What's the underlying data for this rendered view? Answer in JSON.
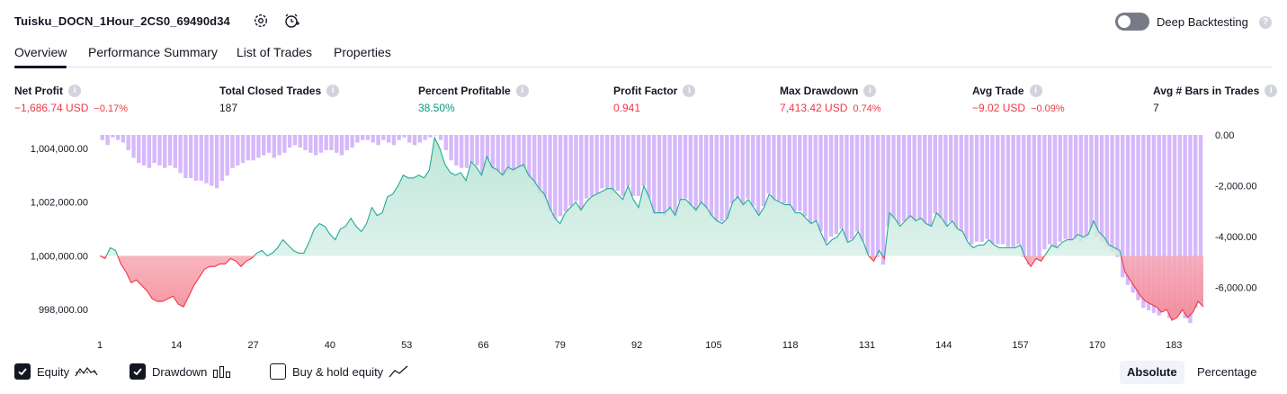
{
  "header": {
    "title": "Tuisku_DOCN_1Hour_2CS0_69490d34",
    "deep_backtesting_label": "Deep Backtesting",
    "deep_backtesting_on": false
  },
  "tabs": [
    {
      "label": "Overview",
      "active": true
    },
    {
      "label": "Performance Summary",
      "active": false
    },
    {
      "label": "List of Trades",
      "active": false
    },
    {
      "label": "Properties",
      "active": false
    }
  ],
  "metrics": [
    {
      "label": "Net Profit",
      "value": "−1,686.74 USD",
      "pct": "−0.17%",
      "tone": "neg"
    },
    {
      "label": "Total Closed Trades",
      "value": "187",
      "pct": "",
      "tone": "neu"
    },
    {
      "label": "Percent Profitable",
      "value": "38.50%",
      "pct": "",
      "tone": "pos"
    },
    {
      "label": "Profit Factor",
      "value": "0.941",
      "pct": "",
      "tone": "neg"
    },
    {
      "label": "Max Drawdown",
      "value": "7,413.42 USD",
      "pct": "0.74%",
      "tone": "neg"
    },
    {
      "label": "Avg Trade",
      "value": "−9.02 USD",
      "pct": "−0.09%",
      "tone": "neg"
    },
    {
      "label": "Avg # Bars in Trades",
      "value": "7",
      "pct": "",
      "tone": "neu"
    }
  ],
  "chart_data": {
    "type": "line",
    "left_axis": {
      "ticks": [
        "1,004,000.00",
        "1,002,000.00",
        "1,000,000.00",
        "998,000.00"
      ],
      "values": [
        1004000,
        1002000,
        1000000,
        998000
      ],
      "range": [
        997400,
        1004500
      ]
    },
    "right_axis": {
      "ticks": [
        "0.00",
        "-2,000.00",
        "-4,000.00",
        "-6,000.00"
      ],
      "values": [
        0,
        -2000,
        -4000,
        -6000
      ],
      "range": [
        -7500,
        0
      ]
    },
    "x_ticks": [
      "1",
      "14",
      "27",
      "40",
      "53",
      "66",
      "79",
      "92",
      "105",
      "118",
      "131",
      "144",
      "157",
      "170",
      "183"
    ],
    "x_range": [
      1,
      188
    ],
    "baseline": 1000000,
    "series": [
      {
        "name": "Equity",
        "values": [
          1000000,
          999900,
          1000300,
          1000200,
          999700,
          999400,
          999000,
          999100,
          998900,
          998700,
          998400,
          998300,
          998300,
          998400,
          998500,
          998200,
          998100,
          998500,
          998900,
          999200,
          999500,
          999600,
          999600,
          999700,
          999700,
          999900,
          999800,
          999600,
          999800,
          999900,
          1000100,
          1000200,
          1000000,
          1000100,
          1000300,
          1000600,
          1000400,
          1000200,
          1000100,
          1000100,
          1000500,
          1001000,
          1001200,
          1001100,
          1000800,
          1000600,
          1001000,
          1001100,
          1001400,
          1001100,
          1000900,
          1001200,
          1001800,
          1001500,
          1001600,
          1002200,
          1002300,
          1002600,
          1003000,
          1002900,
          1002900,
          1003000,
          1002900,
          1003200,
          1004400,
          1004000,
          1003400,
          1003100,
          1003000,
          1003100,
          1002800,
          1003500,
          1003300,
          1003000,
          1003700,
          1003300,
          1003200,
          1003000,
          1003300,
          1003200,
          1003300,
          1003400,
          1003000,
          1002800,
          1002500,
          1002300,
          1001800,
          1001400,
          1001200,
          1001600,
          1001800,
          1002000,
          1001700,
          1002000,
          1002200,
          1002300,
          1002400,
          1002500,
          1002500,
          1002300,
          1002100,
          1002600,
          1002100,
          1001800,
          1002600,
          1002200,
          1001600,
          1001600,
          1001600,
          1001800,
          1001500,
          1002100,
          1002100,
          1001900,
          1001700,
          1002000,
          1001800,
          1001500,
          1001300,
          1001200,
          1001400,
          1002000,
          1002200,
          1001900,
          1002100,
          1001800,
          1001500,
          1001800,
          1002300,
          1002100,
          1002000,
          1001900,
          1001900,
          1001600,
          1001600,
          1001400,
          1001200,
          1001300,
          1000800,
          1000400,
          1000600,
          1000700,
          1001000,
          1000500,
          1000600,
          1000900,
          1000500,
          1000000,
          999800,
          1000200,
          999900,
          1001600,
          1001400,
          1001100,
          1001300,
          1001500,
          1001300,
          1001400,
          1001200,
          1001100,
          1001600,
          1001400,
          1001100,
          1001300,
          1001000,
          1000900,
          1000500,
          1000300,
          1000400,
          1000400,
          1000600,
          1000400,
          1000300,
          1000300,
          1000300,
          1000300,
          1000400,
          999900,
          999600,
          999900,
          999800,
          1000100,
          1000400,
          1000300,
          1000500,
          1000600,
          1000600,
          1000800,
          1000700,
          1000800,
          1001300,
          1000900,
          1000700,
          1000400,
          1000300,
          1000200,
          999400,
          999100,
          998800,
          998500,
          998300,
          998200,
          998100,
          997900,
          998000,
          997600,
          997700,
          998000,
          997700,
          997900,
          998300,
          998100
        ]
      }
    ],
    "drawdown_bars": [
      -200,
      -400,
      -100,
      -200,
      -300,
      -600,
      -900,
      -1100,
      -1200,
      -1300,
      -1100,
      -1200,
      -1300,
      -1200,
      -1300,
      -1500,
      -1700,
      -1700,
      -1800,
      -1800,
      -1900,
      -2000,
      -2100,
      -1800,
      -1600,
      -1300,
      -1200,
      -1100,
      -1000,
      -1000,
      -900,
      -800,
      -700,
      -900,
      -800,
      -700,
      -500,
      -400,
      -500,
      -600,
      -700,
      -800,
      -700,
      -600,
      -600,
      -700,
      -800,
      -600,
      -500,
      -300,
      -200,
      -200,
      -300,
      -400,
      -200,
      -300,
      -400,
      -200,
      -100,
      -300,
      -400,
      -300,
      -200,
      -100,
      0,
      -200,
      -600,
      -1000,
      -1200,
      -1300,
      -1300,
      -1100,
      -1200,
      -1500,
      -1000,
      -1400,
      -1500,
      -1600,
      -1400,
      -1500,
      -1300,
      -1300,
      -1700,
      -2000,
      -2300,
      -2500,
      -3000,
      -3300,
      -3200,
      -3000,
      -2800,
      -2600,
      -2900,
      -2500,
      -2400,
      -2300,
      -2100,
      -2100,
      -2300,
      -2200,
      -2400,
      -2000,
      -2400,
      -2400,
      -2000,
      -2500,
      -3100,
      -3100,
      -3200,
      -3000,
      -3100,
      -2600,
      -2500,
      -2800,
      -3000,
      -2800,
      -2900,
      -3200,
      -3400,
      -3400,
      -3300,
      -2700,
      -2500,
      -2700,
      -2500,
      -2800,
      -3100,
      -2800,
      -2300,
      -2600,
      -2600,
      -2700,
      -2800,
      -3000,
      -3000,
      -3200,
      -3500,
      -3400,
      -3800,
      -4200,
      -4000,
      -3900,
      -3700,
      -4200,
      -4100,
      -3800,
      -4200,
      -4700,
      -4900,
      -4800,
      -5100,
      -3600,
      -3300,
      -3500,
      -3400,
      -3300,
      -3400,
      -3300,
      -3500,
      -3600,
      -3100,
      -3300,
      -3600,
      -3400,
      -3700,
      -3800,
      -4100,
      -4300,
      -4200,
      -4200,
      -4100,
      -4300,
      -4300,
      -4300,
      -4400,
      -4400,
      -4300,
      -4800,
      -5100,
      -4800,
      -4900,
      -4500,
      -4300,
      -4400,
      -4200,
      -4100,
      -4200,
      -4100,
      -4200,
      -4100,
      -3700,
      -4000,
      -4200,
      -4400,
      -4600,
      -4800,
      -5600,
      -5900,
      -6200,
      -6500,
      -6800,
      -6900,
      -7000,
      -7100,
      -6900,
      -7200,
      -7100,
      -7000,
      -7200,
      -7400,
      -6800,
      -6600
    ]
  },
  "footer": {
    "equity_label": "Equity",
    "equity_checked": true,
    "drawdown_label": "Drawdown",
    "drawdown_checked": true,
    "buyhold_label": "Buy & hold equity",
    "buyhold_checked": false,
    "absolute_label": "Absolute",
    "percentage_label": "Percentage",
    "mode": "Absolute"
  },
  "colors": {
    "equity_line_pos": "#22ab94",
    "equity_line_neg": "#f23645",
    "equity_fill_pos": "#c8eadf",
    "equity_fill_neg": "#f7a6b0",
    "drawdown_bar": "#d6b8fb",
    "drawdown_bar_dark": "#b39ddb"
  }
}
